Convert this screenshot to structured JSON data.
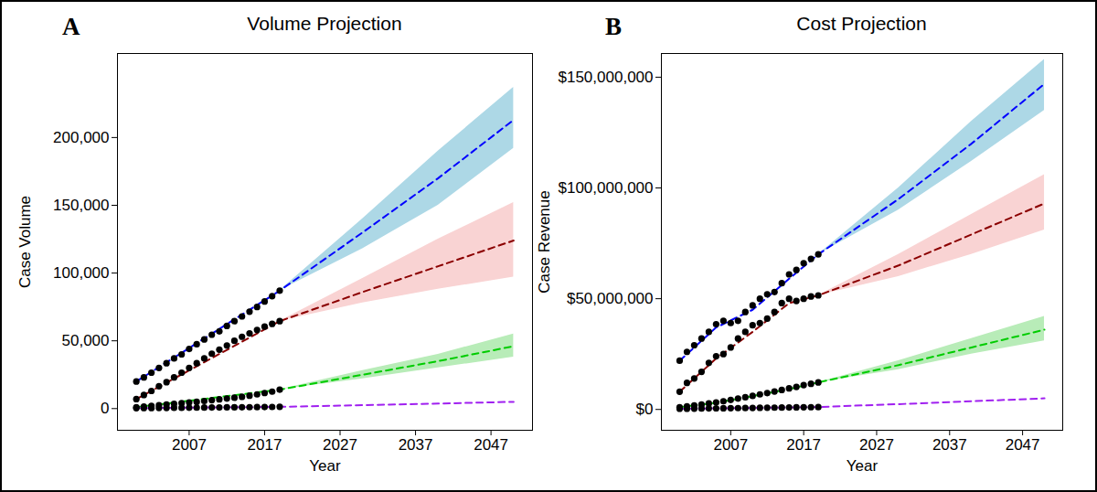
{
  "chart_data": [
    {
      "type": "line",
      "panel_label": "A",
      "title": "Volume Projection",
      "x_label": "Year",
      "y_label": "Case Volume",
      "xlim": [
        1997.5,
        2052.5
      ],
      "xticks": [
        2007,
        2017,
        2027,
        2037,
        2047
      ],
      "ylim": [
        -16000,
        262000
      ],
      "yticks": [
        0,
        {
          "value": 50000,
          "label": "50,000"
        },
        {
          "value": 100000,
          "label": "100,000"
        },
        {
          "value": 150000,
          "label": "150,000"
        },
        {
          "value": 200000,
          "label": "200,000"
        }
      ],
      "grid": false,
      "series": [
        {
          "type": "area",
          "color": "#add8e6",
          "x": [
            2019,
            2030,
            2040,
            2050
          ],
          "lower": [
            87000,
            118000,
            150000,
            192000
          ],
          "upper": [
            87000,
            140000,
            190000,
            237000
          ]
        },
        {
          "type": "area",
          "color": "#f9d3d3",
          "x": [
            2019,
            2030,
            2040,
            2050
          ],
          "lower": [
            64500,
            78000,
            88000,
            97000
          ],
          "upper": [
            64500,
            96000,
            125000,
            152000
          ]
        },
        {
          "type": "area",
          "color": "#b8ecb8",
          "x": [
            2019,
            2030,
            2040,
            2050
          ],
          "lower": [
            14000,
            22000,
            30000,
            38000
          ],
          "upper": [
            14000,
            28000,
            40000,
            55000
          ]
        },
        {
          "type": "line",
          "color": "#0000ff",
          "line_style": "dashed",
          "x": [
            2000,
            2019,
            2030,
            2040,
            2050
          ],
          "values": [
            20000,
            87000,
            130000,
            170000,
            213000
          ]
        },
        {
          "type": "line",
          "color": "#8b0000",
          "line_style": "dashed",
          "x": [
            2000,
            2019,
            2030,
            2040,
            2050
          ],
          "values": [
            7000,
            64500,
            86000,
            105000,
            124000
          ]
        },
        {
          "type": "line",
          "color": "#00cc00",
          "line_style": "dashed",
          "x": [
            2000,
            2019,
            2030,
            2040,
            2050
          ],
          "values": [
            1000,
            14000,
            25000,
            35000,
            46000
          ]
        },
        {
          "type": "line",
          "color": "#a020f0",
          "line_style": "dashed",
          "x": [
            2000,
            2019,
            2030,
            2040,
            2050
          ],
          "values": [
            300,
            1300,
            2500,
            3700,
            5000
          ]
        },
        {
          "type": "scatter",
          "color": "#000000",
          "marker": "circle",
          "x": [
            2000,
            2001,
            2002,
            2003,
            2004,
            2005,
            2006,
            2007,
            2008,
            2009,
            2010,
            2011,
            2012,
            2013,
            2014,
            2015,
            2016,
            2017,
            2018,
            2019
          ],
          "values": [
            20000,
            23000,
            26500,
            30000,
            33500,
            37000,
            40000,
            44000,
            47500,
            51000,
            54500,
            57000,
            61000,
            64500,
            68000,
            71500,
            75000,
            79000,
            83000,
            87000
          ]
        },
        {
          "type": "scatter",
          "color": "#000000",
          "marker": "circle",
          "x": [
            2000,
            2001,
            2002,
            2003,
            2004,
            2005,
            2006,
            2007,
            2008,
            2009,
            2010,
            2011,
            2012,
            2013,
            2014,
            2015,
            2016,
            2017,
            2018,
            2019
          ],
          "values": [
            7000,
            10000,
            13000,
            16500,
            19500,
            23000,
            26500,
            30000,
            33500,
            37000,
            40500,
            43500,
            46500,
            50000,
            53000,
            55500,
            58000,
            60500,
            62500,
            64500
          ]
        },
        {
          "type": "scatter",
          "color": "#000000",
          "marker": "circle",
          "x": [
            2000,
            2001,
            2002,
            2003,
            2004,
            2005,
            2006,
            2007,
            2008,
            2009,
            2010,
            2011,
            2012,
            2013,
            2014,
            2015,
            2016,
            2017,
            2018,
            2019
          ],
          "values": [
            1000,
            1500,
            2000,
            2500,
            3000,
            3500,
            4000,
            4500,
            5000,
            5600,
            6200,
            6800,
            7400,
            8000,
            8700,
            9500,
            10500,
            11500,
            12500,
            14000
          ]
        },
        {
          "type": "scatter",
          "color": "#000000",
          "marker": "circle",
          "x": [
            2000,
            2001,
            2002,
            2003,
            2004,
            2005,
            2006,
            2007,
            2008,
            2009,
            2010,
            2011,
            2012,
            2013,
            2014,
            2015,
            2016,
            2017,
            2018,
            2019
          ],
          "values": [
            300,
            350,
            400,
            450,
            500,
            550,
            600,
            650,
            700,
            750,
            800,
            850,
            900,
            950,
            1000,
            1050,
            1100,
            1150,
            1200,
            1300
          ]
        }
      ]
    },
    {
      "type": "line",
      "panel_label": "B",
      "title": "Cost Projection",
      "x_label": "Year",
      "y_label": "Case Revenue",
      "xlim": [
        1997.5,
        2052.5
      ],
      "xticks": [
        2007,
        2017,
        2027,
        2037,
        2047
      ],
      "ylim": [
        -9400000,
        160700000
      ],
      "yticks": [
        {
          "value": 0,
          "label": "$0"
        },
        {
          "value": 50000000,
          "label": "$50,000,000"
        },
        {
          "value": 100000000,
          "label": "$100,000,000"
        },
        {
          "value": 150000000,
          "label": "$150,000,000"
        }
      ],
      "grid": false,
      "series": [
        {
          "type": "area",
          "color": "#add8e6",
          "x": [
            2019,
            2030,
            2040,
            2050
          ],
          "lower": [
            70000000,
            90000000,
            112000000,
            135000000
          ],
          "upper": [
            70000000,
            100000000,
            130000000,
            158000000
          ]
        },
        {
          "type": "area",
          "color": "#f9d3d3",
          "x": [
            2019,
            2030,
            2040,
            2050
          ],
          "lower": [
            51500000,
            60000000,
            70000000,
            81000000
          ],
          "upper": [
            51500000,
            70000000,
            88000000,
            106000000
          ]
        },
        {
          "type": "area",
          "color": "#b8ecb8",
          "x": [
            2019,
            2030,
            2040,
            2050
          ],
          "lower": [
            12200000,
            18000000,
            25000000,
            31000000
          ],
          "upper": [
            12200000,
            22000000,
            32000000,
            42000000
          ]
        },
        {
          "type": "line",
          "color": "#0000ff",
          "line_style": "dashed",
          "x": [
            2000,
            2005,
            2010,
            2015,
            2019,
            2030,
            2040,
            2050
          ],
          "values": [
            22000000,
            37000000,
            45000000,
            59000000,
            70000000,
            95000000,
            120000000,
            147000000
          ]
        },
        {
          "type": "line",
          "color": "#8b0000",
          "line_style": "dashed",
          "x": [
            2000,
            2005,
            2010,
            2015,
            2019,
            2030,
            2040,
            2050
          ],
          "values": [
            8000000,
            23000000,
            35000000,
            48000000,
            51500000,
            65000000,
            79000000,
            93000000
          ]
        },
        {
          "type": "line",
          "color": "#00cc00",
          "line_style": "dashed",
          "x": [
            2000,
            2005,
            2010,
            2015,
            2019,
            2030,
            2040,
            2050
          ],
          "values": [
            1000000,
            3000000,
            6000000,
            9200000,
            12200000,
            20000000,
            28000000,
            36000000
          ]
        },
        {
          "type": "line",
          "color": "#a020f0",
          "line_style": "dashed",
          "x": [
            2000,
            2005,
            2010,
            2015,
            2019,
            2030,
            2040,
            2050
          ],
          "values": [
            300000,
            500000,
            700000,
            900000,
            1100000,
            2400000,
            3700000,
            5000000
          ]
        },
        {
          "type": "scatter",
          "color": "#000000",
          "marker": "circle",
          "x": [
            2000,
            2001,
            2002,
            2003,
            2004,
            2005,
            2006,
            2007,
            2008,
            2009,
            2010,
            2011,
            2012,
            2013,
            2014,
            2015,
            2016,
            2017,
            2018,
            2019
          ],
          "values": [
            22000000,
            26000000,
            29000000,
            32000000,
            35000000,
            38500000,
            40000000,
            39000000,
            40000000,
            44000000,
            47000000,
            50000000,
            52000000,
            53000000,
            57000000,
            61000000,
            63000000,
            66000000,
            68000000,
            70000000
          ]
        },
        {
          "type": "scatter",
          "color": "#000000",
          "marker": "circle",
          "x": [
            2000,
            2001,
            2002,
            2003,
            2004,
            2005,
            2006,
            2007,
            2008,
            2009,
            2010,
            2011,
            2012,
            2013,
            2014,
            2015,
            2016,
            2017,
            2018,
            2019
          ],
          "values": [
            8000000,
            12000000,
            14000000,
            17000000,
            21000000,
            24000000,
            25000000,
            28000000,
            32000000,
            35000000,
            38000000,
            39000000,
            41000000,
            44000000,
            48000000,
            50000000,
            49000000,
            50000000,
            51000000,
            51500000
          ]
        },
        {
          "type": "scatter",
          "color": "#000000",
          "marker": "circle",
          "x": [
            2000,
            2001,
            2002,
            2003,
            2004,
            2005,
            2006,
            2007,
            2008,
            2009,
            2010,
            2011,
            2012,
            2013,
            2014,
            2015,
            2016,
            2017,
            2018,
            2019
          ],
          "values": [
            1000000,
            1400000,
            1800000,
            2200000,
            2700000,
            3200000,
            3700000,
            4300000,
            4900000,
            5500000,
            6100000,
            6800000,
            7400000,
            8100000,
            8800000,
            9500000,
            10200000,
            11000000,
            11600000,
            12200000
          ]
        },
        {
          "type": "scatter",
          "color": "#000000",
          "marker": "circle",
          "x": [
            2000,
            2001,
            2002,
            2003,
            2004,
            2005,
            2006,
            2007,
            2008,
            2009,
            2010,
            2011,
            2012,
            2013,
            2014,
            2015,
            2016,
            2017,
            2018,
            2019
          ],
          "values": [
            300000,
            340000,
            380000,
            420000,
            460000,
            500000,
            540000,
            580000,
            620000,
            660000,
            700000,
            740000,
            780000,
            820000,
            860000,
            900000,
            940000,
            980000,
            1020000,
            1060000
          ]
        }
      ]
    }
  ]
}
